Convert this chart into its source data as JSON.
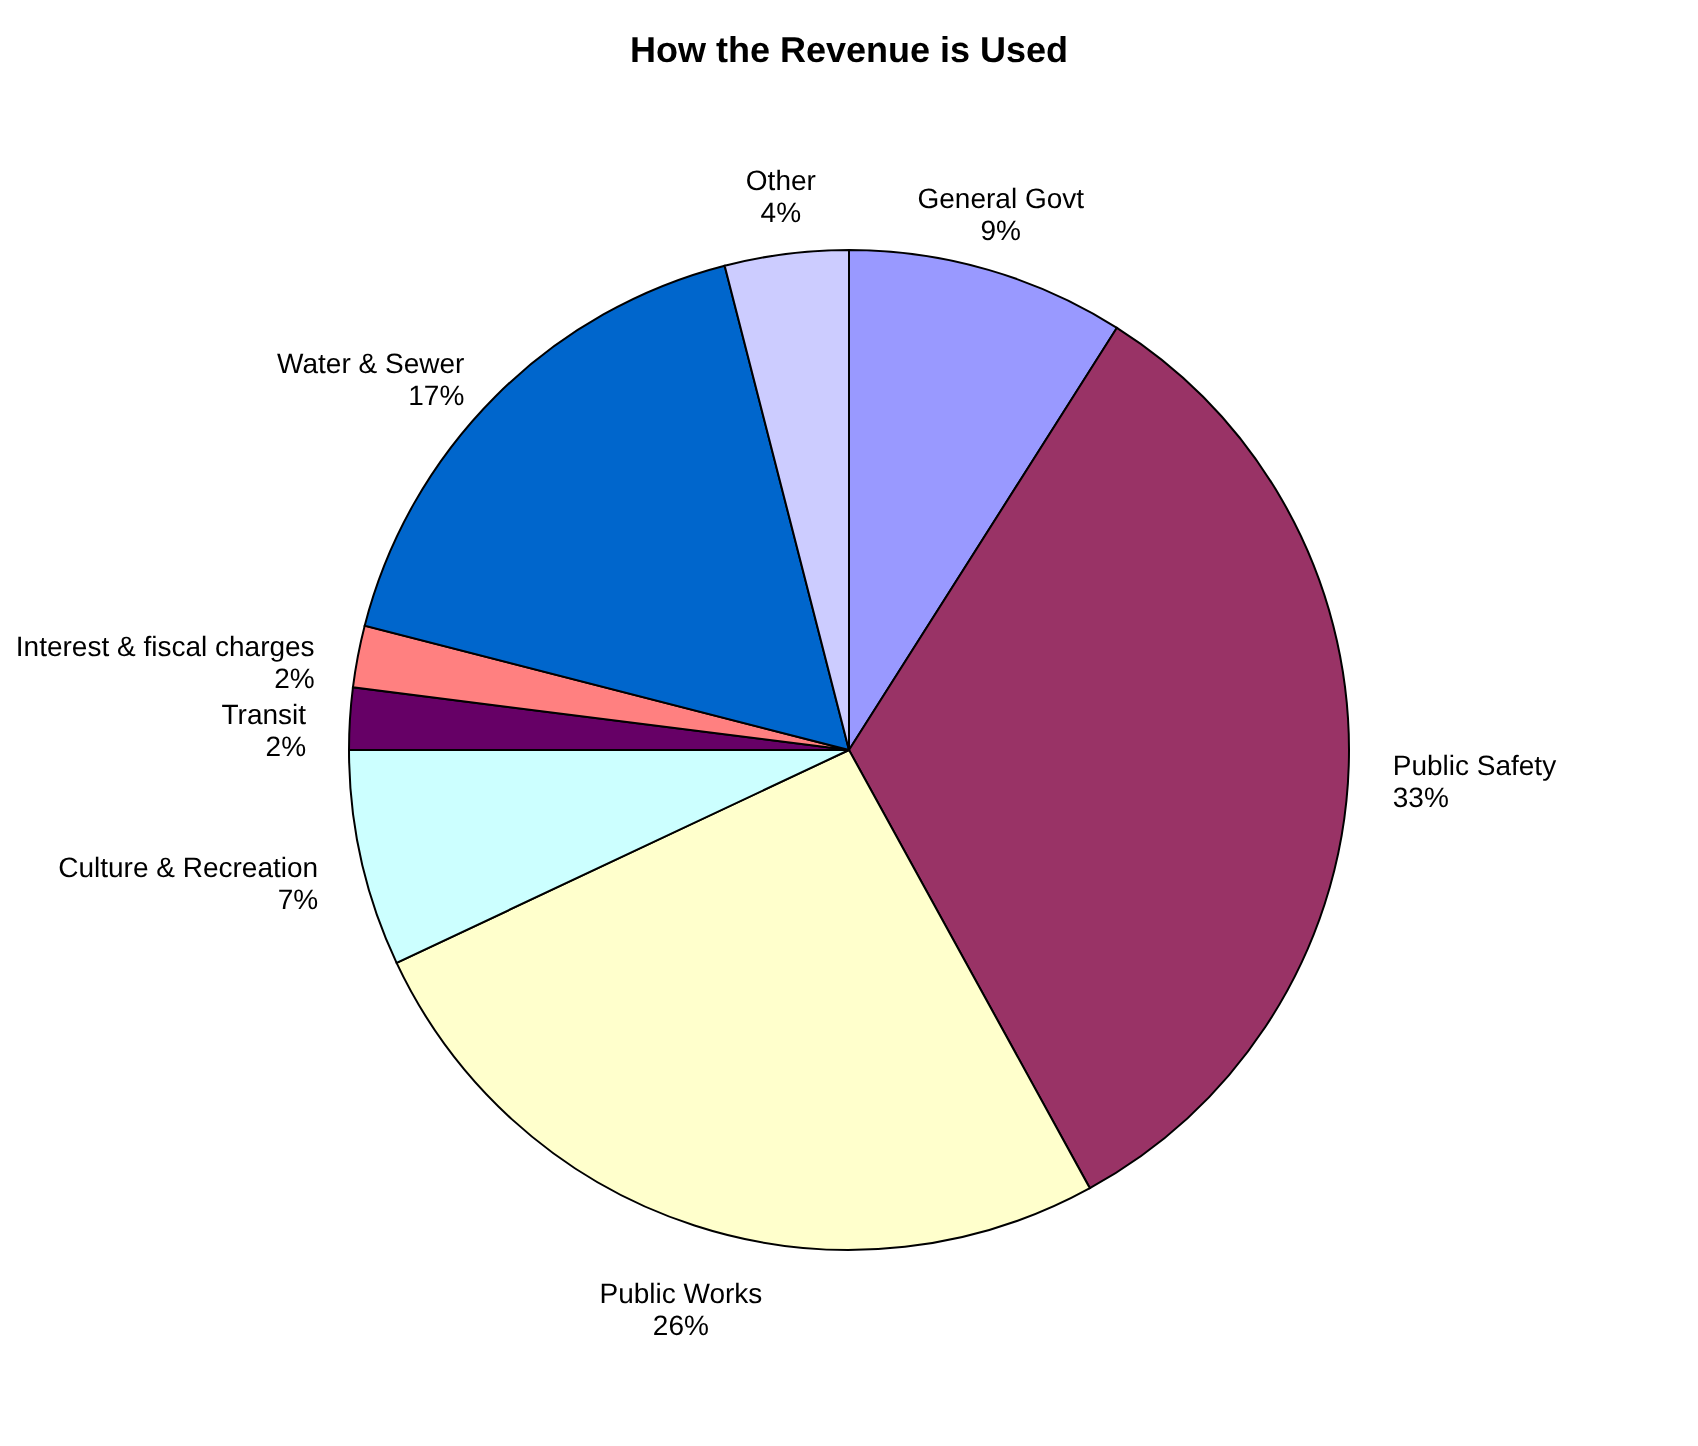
{
  "chart_data": {
    "type": "pie",
    "title": "How the Revenue is Used",
    "categories": [
      "General  Govt",
      "Public Safety",
      "Public Works",
      "Culture  & Recreation",
      "Transit",
      "Interest & fiscal charges",
      "Water & Sewer",
      "Other"
    ],
    "values": [
      9,
      33,
      26,
      7,
      2,
      2,
      17,
      4
    ],
    "value_labels": [
      "9%",
      "33%",
      "26%",
      "7%",
      "2%",
      "2%",
      "17%",
      "4%"
    ],
    "colors": [
      "#9999ff",
      "#993366",
      "#ffffcc",
      "#ccffff",
      "#660066",
      "#ff8080",
      "#0066cc",
      "#ccccff"
    ]
  }
}
